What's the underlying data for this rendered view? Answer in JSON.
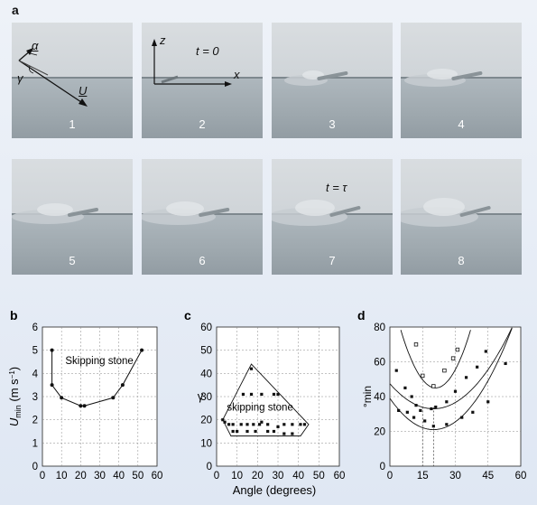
{
  "panel_a": {
    "letter": "a",
    "frames": [
      {
        "number": "1"
      },
      {
        "number": "2",
        "time_label": "t = 0"
      },
      {
        "number": "3"
      },
      {
        "number": "4"
      },
      {
        "number": "5"
      },
      {
        "number": "6"
      },
      {
        "number": "7",
        "time_label": "t = τ"
      },
      {
        "number": "8"
      }
    ],
    "frame1_labels": {
      "alpha": "α",
      "gamma": "γ",
      "velocity": "U"
    },
    "frame2_axes": {
      "z": "z",
      "x": "x"
    }
  },
  "colors": {
    "figure_bg": "#e6ecf5",
    "marker": "#111111"
  },
  "chart_data": [
    {
      "panel": "b",
      "type": "line",
      "ylabel": "U",
      "ylabel_sub": "min",
      "ylabel_unit": "(m s",
      "ylabel_unit_sup": "−1",
      "ylabel_unit_end": ")",
      "xlim": [
        0,
        60
      ],
      "ylim": [
        0,
        6
      ],
      "xticks": [
        "0",
        "10",
        "20",
        "30",
        "40",
        "50",
        "60"
      ],
      "yticks": [
        "0",
        "1",
        "2",
        "3",
        "4",
        "5",
        "6"
      ],
      "annotation": "Skipping stone",
      "points": [
        [
          5,
          5.0
        ],
        [
          5,
          3.5
        ],
        [
          10,
          2.95
        ],
        [
          20,
          2.6
        ],
        [
          22,
          2.6
        ],
        [
          37,
          2.95
        ],
        [
          42,
          3.5
        ],
        [
          52,
          5.0
        ]
      ],
      "grid": true
    },
    {
      "panel": "c",
      "type": "scatter",
      "ylabel": "γ",
      "xlim": [
        0,
        60
      ],
      "ylim": [
        0,
        60
      ],
      "xticks": [
        "0",
        "10",
        "20",
        "30",
        "40",
        "50",
        "60"
      ],
      "yticks": [
        "0",
        "10",
        "20",
        "30",
        "40",
        "50",
        "60"
      ],
      "annotation": "skipping stone",
      "boundary": [
        [
          17,
          44
        ],
        [
          45,
          18
        ],
        [
          41,
          13
        ],
        [
          7,
          13
        ],
        [
          3,
          20
        ]
      ],
      "points": [
        [
          17,
          42
        ],
        [
          13,
          31
        ],
        [
          17,
          31
        ],
        [
          22,
          31
        ],
        [
          28,
          31
        ],
        [
          30,
          31
        ],
        [
          3,
          20
        ],
        [
          4,
          19
        ],
        [
          6,
          18
        ],
        [
          8,
          18
        ],
        [
          12,
          18
        ],
        [
          15,
          18
        ],
        [
          18,
          18
        ],
        [
          21,
          18
        ],
        [
          22,
          19
        ],
        [
          25,
          18
        ],
        [
          30,
          17
        ],
        [
          33,
          18
        ],
        [
          37,
          18
        ],
        [
          41,
          18
        ],
        [
          43,
          18
        ],
        [
          8,
          15
        ],
        [
          10,
          15
        ],
        [
          15,
          15
        ],
        [
          19,
          15
        ],
        [
          25,
          15
        ],
        [
          28,
          15
        ],
        [
          33,
          14
        ],
        [
          37,
          14
        ]
      ],
      "grid": true
    },
    {
      "panel": "d",
      "type": "scatter",
      "ylabel": "°min",
      "xlabel": "Angle (degrees)",
      "xlim": [
        0,
        60
      ],
      "ylim": [
        0,
        80
      ],
      "xticks": [
        "0",
        "15",
        "30",
        "45",
        "60"
      ],
      "yticks": [
        "0",
        "20",
        "40",
        "60",
        "80"
      ],
      "vertical_dashed": [
        15,
        20
      ],
      "curves": [
        {
          "vertex": [
            21,
            45
          ],
          "coef": 0.13
        },
        {
          "vertex": [
            20,
            33
          ],
          "coef": 0.036
        },
        {
          "vertex": [
            20,
            21
          ],
          "coef": 0.045
        }
      ],
      "points_open": [
        [
          12,
          70
        ],
        [
          15,
          52
        ],
        [
          20,
          46
        ],
        [
          25,
          55
        ],
        [
          29,
          62
        ],
        [
          31,
          67
        ]
      ],
      "points_filled": [
        [
          3,
          55
        ],
        [
          7,
          45
        ],
        [
          10,
          40
        ],
        [
          12,
          35
        ],
        [
          14,
          32
        ],
        [
          19,
          33
        ],
        [
          21,
          34
        ],
        [
          26,
          37
        ],
        [
          30,
          43
        ],
        [
          35,
          51
        ],
        [
          40,
          57
        ],
        [
          44,
          66
        ],
        [
          4,
          32
        ],
        [
          8,
          31
        ],
        [
          11,
          28
        ],
        [
          16,
          26
        ],
        [
          20,
          23
        ],
        [
          26,
          24
        ],
        [
          33,
          28
        ],
        [
          38,
          31
        ],
        [
          45,
          37
        ],
        [
          53,
          59
        ]
      ],
      "grid": true
    }
  ]
}
